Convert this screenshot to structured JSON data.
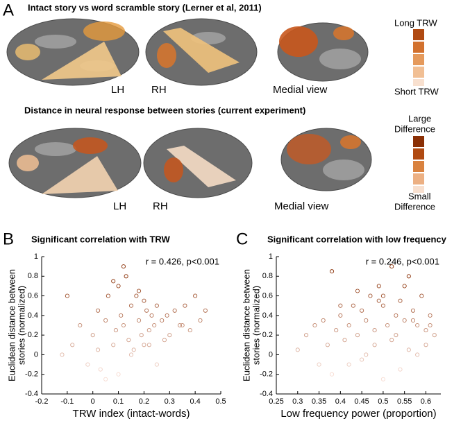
{
  "panel_a": {
    "label": "A",
    "row1": {
      "title": "Intact story vs word scramble story (Lerner et al, 2011)",
      "lh": "LH",
      "rh": "RH",
      "medial": "Medial view",
      "legend_top": "Long TRW",
      "legend_bottom": "Short TRW"
    },
    "row2": {
      "title": "Distance in neural response between stories (current experiment)",
      "lh": "LH",
      "rh": "RH",
      "medial": "Medial view",
      "legend_top": [
        "Large",
        "Difference"
      ],
      "legend_bottom": [
        "Small",
        "Difference"
      ]
    }
  },
  "chart_data": [
    {
      "type": "scatter",
      "panel": "B",
      "title": "Significant correlation with TRW",
      "annotation": "r = 0.426, p<0.001",
      "xlabel": "TRW index (intact-words)",
      "ylabel": [
        "Euclidean distance between",
        "stories (normalized)"
      ],
      "xlim": [
        -0.2,
        0.5
      ],
      "ylim": [
        -0.4,
        1
      ],
      "xticks": [
        -0.2,
        -0.1,
        0,
        0.1,
        0.2,
        0.3,
        0.4,
        0.5
      ],
      "yticks": [
        -0.4,
        -0.2,
        0,
        0.2,
        0.4,
        0.6,
        0.8,
        1
      ],
      "colormap": [
        "#f7dcd2",
        "#8a2f05"
      ],
      "x": [
        -0.1,
        -0.08,
        -0.05,
        -0.02,
        0,
        0.02,
        0.03,
        0.05,
        0.06,
        0.08,
        0.09,
        0.1,
        0.11,
        0.12,
        0.13,
        0.14,
        0.15,
        0.16,
        0.17,
        0.18,
        0.19,
        0.2,
        0.21,
        0.22,
        0.23,
        0.24,
        0.25,
        0.27,
        0.29,
        0.3,
        0.32,
        0.34,
        0.36,
        0.38,
        0.4,
        0.42,
        0.44,
        -0.12,
        0.05,
        0.1,
        0.15,
        0.2,
        0.25,
        0.08,
        0.12,
        0.18,
        0.02,
        0.28,
        0.35,
        0.22
      ],
      "values": [
        0.6,
        0.1,
        0.3,
        -0.1,
        0.2,
        0.45,
        -0.15,
        0.35,
        0.6,
        0.1,
        0.25,
        0.7,
        0.4,
        0.3,
        0.8,
        0.15,
        0.5,
        0.05,
        0.6,
        0.35,
        0.2,
        0.55,
        0.45,
        0.25,
        0.4,
        0.3,
        0.5,
        0.35,
        0.4,
        0.2,
        0.45,
        0.3,
        0.5,
        0.25,
        0.6,
        0.35,
        0.45,
        0.0,
        -0.25,
        -0.2,
        0.0,
        0.1,
        -0.1,
        0.75,
        0.9,
        0.65,
        0.05,
        0.15,
        0.3,
        0.1
      ]
    },
    {
      "type": "scatter",
      "panel": "C",
      "title": "Significant correlation with low frequency",
      "annotation": "r = 0.246, p<0.001",
      "xlabel": "Low frequency power (proportion)",
      "ylabel": [
        "Euclidean distance between",
        "stories (normalized)"
      ],
      "xlim": [
        0.25,
        0.635
      ],
      "ylim": [
        -0.4,
        1
      ],
      "xticks": [
        0.25,
        0.3,
        0.35,
        0.4,
        0.45,
        0.5,
        0.55,
        0.6
      ],
      "yticks": [
        -0.4,
        -0.2,
        0,
        0.2,
        0.4,
        0.6,
        0.8,
        1
      ],
      "colormap": [
        "#f7dcd2",
        "#8a2f05"
      ],
      "x": [
        0.3,
        0.32,
        0.34,
        0.35,
        0.36,
        0.37,
        0.38,
        0.39,
        0.4,
        0.41,
        0.42,
        0.43,
        0.44,
        0.45,
        0.46,
        0.47,
        0.48,
        0.49,
        0.5,
        0.51,
        0.52,
        0.53,
        0.54,
        0.55,
        0.56,
        0.57,
        0.58,
        0.59,
        0.6,
        0.61,
        0.62,
        0.38,
        0.42,
        0.46,
        0.5,
        0.54,
        0.58,
        0.44,
        0.48,
        0.52,
        0.56,
        0.6,
        0.4,
        0.5,
        0.55,
        0.45,
        0.53,
        0.57,
        0.49,
        0.61
      ],
      "values": [
        0.05,
        0.2,
        0.3,
        -0.1,
        0.35,
        0.1,
        0.85,
        0.25,
        0.4,
        0.15,
        0.3,
        0.5,
        0.2,
        0.45,
        0.35,
        0.6,
        0.25,
        0.7,
        0.5,
        0.3,
        0.9,
        0.4,
        0.55,
        0.35,
        0.8,
        0.45,
        0.3,
        0.6,
        0.25,
        0.4,
        0.2,
        -0.2,
        -0.1,
        0.0,
        -0.25,
        -0.15,
        0.0,
        0.65,
        0.1,
        0.15,
        0.05,
        0.1,
        0.5,
        0.6,
        0.7,
        -0.05,
        0.2,
        0.35,
        0.55,
        0.3
      ]
    }
  ]
}
